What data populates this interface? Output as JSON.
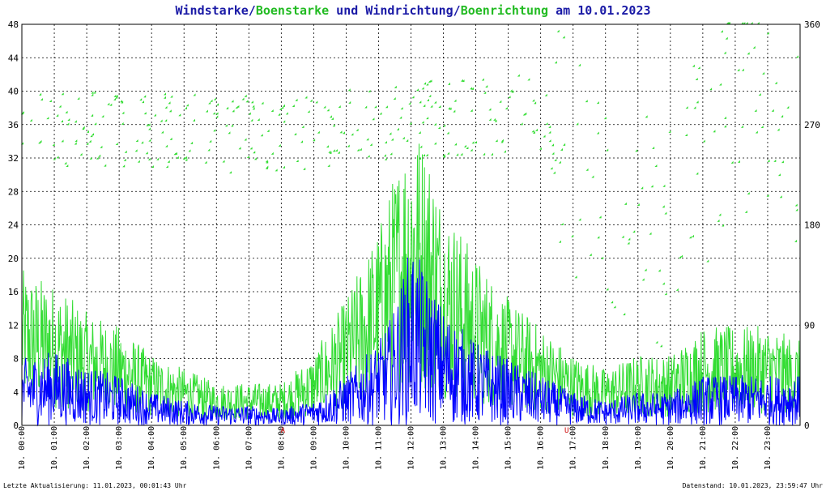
{
  "title": {
    "parts": [
      {
        "text": "Windstarke",
        "color": "#1a1aa6"
      },
      {
        "text": "/",
        "color": "#1a1aa6"
      },
      {
        "text": "Boenstarke",
        "color": "#22bb22"
      },
      {
        "text": " und ",
        "color": "#1a1aa6"
      },
      {
        "text": "Windrichtung",
        "color": "#1a1aa6"
      },
      {
        "text": "/",
        "color": "#1a1aa6"
      },
      {
        "text": "Boenrichtung",
        "color": "#22bb22"
      },
      {
        "text": " am 10.01.2023",
        "color": "#1a1aa6"
      }
    ]
  },
  "footer": {
    "left": "Letzte Aktualisierung: 11.01.2023, 00:01:43 Uhr",
    "right": "Datenstand: 10.01.2023, 23:59:47 Uhr"
  },
  "chart_data": {
    "type": "line",
    "x_range_hours": [
      0,
      24
    ],
    "y_left": {
      "min": 0,
      "max": 48,
      "ticks": [
        "0",
        "4",
        "8",
        "12",
        "16",
        "20",
        "24",
        "28",
        "32",
        "36",
        "40",
        "44",
        "48"
      ]
    },
    "y_right": {
      "min": 0,
      "max": 360,
      "ticks": [
        "0",
        "90",
        "180",
        "270",
        "360"
      ]
    },
    "x_ticks": [
      "10. 00:00",
      "10. 01:00",
      "10. 02:00",
      "10. 03:00",
      "10. 04:00",
      "10. 05:00",
      "10. 06:00",
      "10. 07:00",
      "10. 08:00",
      "10. 09:00",
      "10. 10:00",
      "10. 11:00",
      "10. 12:00",
      "10. 13:00",
      "10. 14:00",
      "10. 15:00",
      "10. 16:00",
      "10. 17:00",
      "10. 18:00",
      "10. 19:00",
      "10. 20:00",
      "10. 21:00",
      "10. 22:00",
      "10. 23:00"
    ],
    "grid": true,
    "markers": [
      {
        "label": "A",
        "hour": 8.05
      },
      {
        "label": "U",
        "hour": 16.8
      }
    ],
    "colors": {
      "wind": "#0000ff",
      "gust": "#33dd33",
      "grid": "#000000"
    },
    "series": [
      {
        "name": "Windstarke",
        "axis": "left",
        "kind": "line",
        "profile": [
          [
            0,
            4
          ],
          [
            1,
            4.5
          ],
          [
            2,
            3.5
          ],
          [
            3,
            3
          ],
          [
            4,
            2
          ],
          [
            5,
            1.5
          ],
          [
            6,
            1.2
          ],
          [
            7,
            1.2
          ],
          [
            8,
            1
          ],
          [
            9,
            1.5
          ],
          [
            10,
            3
          ],
          [
            11,
            5
          ],
          [
            11.5,
            7
          ],
          [
            12,
            11
          ],
          [
            12.5,
            9
          ],
          [
            13,
            7
          ],
          [
            14,
            5
          ],
          [
            15,
            4
          ],
          [
            16,
            3
          ],
          [
            17,
            2
          ],
          [
            18,
            1.5
          ],
          [
            19,
            2
          ],
          [
            20,
            2
          ],
          [
            21,
            3
          ],
          [
            22,
            3
          ],
          [
            23,
            3
          ],
          [
            24,
            3
          ]
        ]
      },
      {
        "name": "Boenstarke",
        "axis": "left",
        "kind": "line",
        "profile": [
          [
            0,
            11
          ],
          [
            1,
            10
          ],
          [
            2,
            8
          ],
          [
            3,
            7
          ],
          [
            4,
            5
          ],
          [
            5,
            4
          ],
          [
            6,
            3
          ],
          [
            7,
            3
          ],
          [
            8,
            3
          ],
          [
            9,
            5
          ],
          [
            10,
            9
          ],
          [
            11,
            14
          ],
          [
            11.5,
            18
          ],
          [
            12,
            22
          ],
          [
            12.5,
            20
          ],
          [
            13,
            16
          ],
          [
            14,
            12
          ],
          [
            15,
            9
          ],
          [
            16,
            7
          ],
          [
            17,
            5
          ],
          [
            18,
            4
          ],
          [
            19,
            5
          ],
          [
            20,
            5
          ],
          [
            21,
            7
          ],
          [
            22,
            7
          ],
          [
            23,
            7
          ],
          [
            24,
            6
          ]
        ]
      },
      {
        "name": "Windrichtung",
        "axis": "right",
        "kind": "scatter",
        "profile": [
          [
            0,
            265
          ],
          [
            2,
            260
          ],
          [
            4,
            265
          ],
          [
            6,
            262
          ],
          [
            8,
            258
          ],
          [
            10,
            262
          ],
          [
            12,
            270
          ],
          [
            14,
            272
          ],
          [
            16,
            285
          ],
          [
            17,
            300
          ],
          [
            18,
            200
          ],
          [
            19,
            160
          ],
          [
            20,
            150
          ],
          [
            21,
            320
          ],
          [
            22,
            300
          ],
          [
            23,
            280
          ],
          [
            24,
            250
          ]
        ]
      },
      {
        "name": "Boenrichtung",
        "axis": "right",
        "kind": "scatter",
        "profile": [
          [
            0,
            268
          ],
          [
            4,
            262
          ],
          [
            8,
            260
          ],
          [
            12,
            272
          ],
          [
            16,
            280
          ],
          [
            18,
            180
          ],
          [
            20,
            160
          ],
          [
            22,
            300
          ],
          [
            24,
            260
          ]
        ]
      }
    ]
  }
}
